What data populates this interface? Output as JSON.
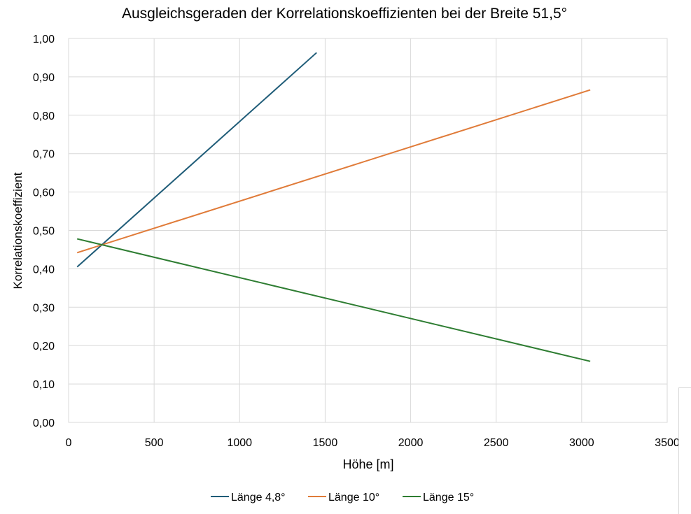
{
  "chart_data": {
    "type": "line",
    "title": "Ausgleichsgeraden der Korrelationskoeffizienten bei der Breite 51,5°",
    "xlabel": "Höhe [m]",
    "ylabel": "Korrelationskoeffizient",
    "xlim": [
      0,
      3500
    ],
    "ylim": [
      0,
      1
    ],
    "x_ticks": [
      0,
      500,
      1000,
      1500,
      2000,
      2500,
      3000,
      3500
    ],
    "x_tick_labels": [
      "0",
      "500",
      "1000",
      "1500",
      "2000",
      "2500",
      "3000",
      "3500"
    ],
    "y_ticks": [
      0,
      0.1,
      0.2,
      0.3,
      0.4,
      0.5,
      0.6,
      0.7,
      0.8,
      0.9,
      1.0
    ],
    "y_tick_labels": [
      "0,00",
      "0,10",
      "0,20",
      "0,30",
      "0,40",
      "0,50",
      "0,60",
      "0,70",
      "0,80",
      "0,90",
      "1,00"
    ],
    "grid": true,
    "legend_position": "bottom",
    "series": [
      {
        "name": "Länge 4,8°",
        "color": "#1f5c78",
        "x": [
          50,
          1450
        ],
        "y": [
          0.405,
          0.963
        ]
      },
      {
        "name": "Länge 10°",
        "color": "#e07b39",
        "x": [
          50,
          3050
        ],
        "y": [
          0.442,
          0.866
        ]
      },
      {
        "name": "Länge 15°",
        "color": "#2e7d32",
        "x": [
          50,
          3050
        ],
        "y": [
          0.478,
          0.159
        ]
      }
    ]
  }
}
